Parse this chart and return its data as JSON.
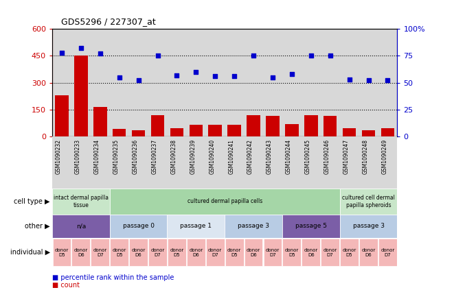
{
  "title": "GDS5296 / 227307_at",
  "samples": [
    "GSM1090232",
    "GSM1090233",
    "GSM1090234",
    "GSM1090235",
    "GSM1090236",
    "GSM1090237",
    "GSM1090238",
    "GSM1090239",
    "GSM1090240",
    "GSM1090241",
    "GSM1090242",
    "GSM1090243",
    "GSM1090244",
    "GSM1090245",
    "GSM1090246",
    "GSM1090247",
    "GSM1090248",
    "GSM1090249"
  ],
  "count_values": [
    230,
    450,
    165,
    40,
    35,
    120,
    45,
    65,
    65,
    65,
    120,
    115,
    70,
    120,
    115,
    45,
    35,
    45
  ],
  "percentile_values": [
    78,
    82,
    77,
    55,
    52,
    75,
    57,
    60,
    56,
    56,
    75,
    55,
    58,
    75,
    75,
    53,
    52,
    52
  ],
  "bar_color": "#cc0000",
  "dot_color": "#0000cc",
  "ylim_left": [
    0,
    600
  ],
  "ylim_right": [
    0,
    100
  ],
  "yticks_left": [
    0,
    150,
    300,
    450,
    600
  ],
  "ytick_labels_left": [
    "0",
    "150",
    "300",
    "450",
    "600"
  ],
  "yticks_right": [
    0,
    25,
    50,
    75,
    100
  ],
  "ytick_labels_right": [
    "0",
    "25",
    "50",
    "75",
    "100%"
  ],
  "hlines": [
    150,
    300,
    450
  ],
  "cell_type_groups": [
    {
      "label": "intact dermal papilla\ntissue",
      "start": 0,
      "end": 3,
      "color": "#c8e6c9"
    },
    {
      "label": "cultured dermal papilla cells",
      "start": 3,
      "end": 15,
      "color": "#a5d6a7"
    },
    {
      "label": "cultured cell dermal\npapilla spheroids",
      "start": 15,
      "end": 18,
      "color": "#c8e6c9"
    }
  ],
  "other_groups": [
    {
      "label": "n/a",
      "start": 0,
      "end": 3,
      "color": "#7b5ea7"
    },
    {
      "label": "passage 0",
      "start": 3,
      "end": 6,
      "color": "#b8cce4"
    },
    {
      "label": "passage 1",
      "start": 6,
      "end": 9,
      "color": "#dce6f1"
    },
    {
      "label": "passage 3",
      "start": 9,
      "end": 12,
      "color": "#b8cce4"
    },
    {
      "label": "passage 5",
      "start": 12,
      "end": 15,
      "color": "#7b5ea7"
    },
    {
      "label": "passage 3",
      "start": 15,
      "end": 18,
      "color": "#b8cce4"
    }
  ],
  "individual_groups": [
    {
      "label": "donor\nD5",
      "start": 0,
      "end": 1
    },
    {
      "label": "donor\nD6",
      "start": 1,
      "end": 2
    },
    {
      "label": "donor\nD7",
      "start": 2,
      "end": 3
    },
    {
      "label": "donor\nD5",
      "start": 3,
      "end": 4
    },
    {
      "label": "donor\nD6",
      "start": 4,
      "end": 5
    },
    {
      "label": "donor\nD7",
      "start": 5,
      "end": 6
    },
    {
      "label": "donor\nD5",
      "start": 6,
      "end": 7
    },
    {
      "label": "donor\nD6",
      "start": 7,
      "end": 8
    },
    {
      "label": "donor\nD7",
      "start": 8,
      "end": 9
    },
    {
      "label": "donor\nD5",
      "start": 9,
      "end": 10
    },
    {
      "label": "donor\nD6",
      "start": 10,
      "end": 11
    },
    {
      "label": "donor\nD7",
      "start": 11,
      "end": 12
    },
    {
      "label": "donor\nD5",
      "start": 12,
      "end": 13
    },
    {
      "label": "donor\nD6",
      "start": 13,
      "end": 14
    },
    {
      "label": "donor\nD7",
      "start": 14,
      "end": 15
    },
    {
      "label": "donor\nD5",
      "start": 15,
      "end": 16
    },
    {
      "label": "donor\nD6",
      "start": 16,
      "end": 17
    },
    {
      "label": "donor\nD7",
      "start": 17,
      "end": 18
    }
  ],
  "indiv_color_d5": "#f4b8b8",
  "indiv_color_d6": "#f4b8b8",
  "indiv_color_d7": "#f4b8b8",
  "legend_count_color": "#cc0000",
  "legend_percentile_color": "#0000cc",
  "legend_count_label": "count",
  "legend_percentile_label": "percentile rank within the sample",
  "background_color": "#ffffff",
  "plot_bg_color": "#d8d8d8"
}
